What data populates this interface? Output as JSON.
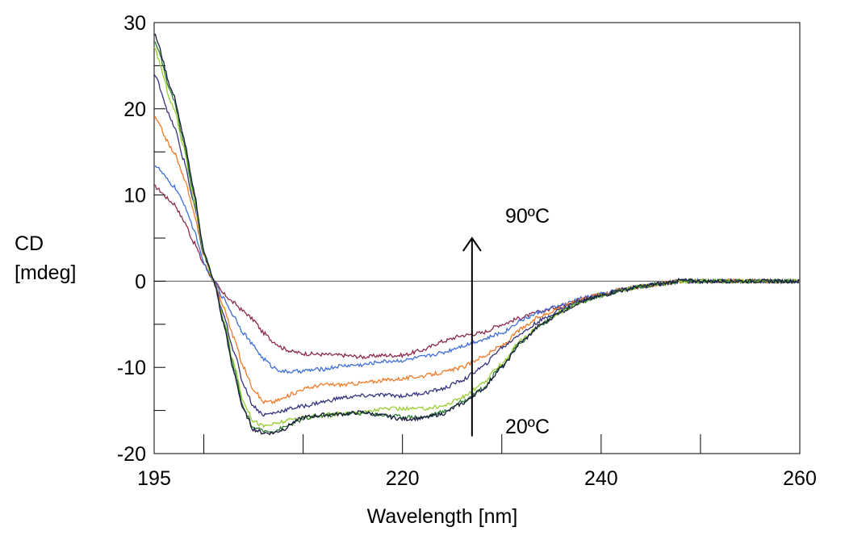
{
  "chart_data": {
    "type": "line",
    "title": "",
    "xlabel": "Wavelength [nm]",
    "ylabel_lines": [
      "CD",
      "[mdeg]"
    ],
    "xlim": [
      195,
      260
    ],
    "ylim": [
      -20,
      30
    ],
    "x_ticks": [
      195,
      220,
      240,
      260
    ],
    "x_minor_ticks": [
      200,
      210,
      230,
      250
    ],
    "y_ticks": [
      30,
      20,
      10,
      0,
      -10,
      -20
    ],
    "y_tick_labels": [
      "30",
      "20",
      "10",
      "0",
      "-10",
      "-20"
    ],
    "y_minor_ticks": [
      25,
      15,
      5,
      -5,
      -15
    ],
    "zero_line": true,
    "grid": false,
    "legend": "none",
    "annotations": {
      "top_label": "90ºC",
      "bottom_label": "20ºC",
      "arrow": {
        "x": 227,
        "from_y": -18,
        "to_y": 5,
        "direction": "up"
      }
    },
    "series": [
      {
        "color": "#8B2A52",
        "x": [
          195,
          197,
          198,
          199,
          200,
          201,
          202,
          203,
          204,
          205,
          206,
          207,
          208,
          209,
          210,
          212,
          214,
          216,
          218,
          220,
          222,
          224,
          226,
          228,
          230,
          232,
          234,
          236,
          238,
          240,
          242,
          244,
          246,
          248,
          250,
          252,
          254,
          256,
          258,
          260
        ],
        "y": [
          11,
          9,
          7,
          4.5,
          2,
          0,
          -1.5,
          -2.5,
          -3.5,
          -4.5,
          -6,
          -7,
          -7.8,
          -8.2,
          -8.4,
          -8.5,
          -8.6,
          -8.8,
          -8.6,
          -8.6,
          -8,
          -7,
          -6.3,
          -6,
          -5,
          -4.2,
          -3.5,
          -2.8,
          -2,
          -1.5,
          -1,
          -0.6,
          -0.3,
          0,
          0,
          0,
          0,
          0,
          0,
          0
        ]
      },
      {
        "color": "#3F6FD8",
        "x": [
          195,
          197,
          198,
          199,
          200,
          201,
          202,
          203,
          204,
          205,
          206,
          207,
          208,
          209,
          210,
          212,
          214,
          216,
          218,
          220,
          222,
          224,
          226,
          228,
          230,
          232,
          234,
          236,
          238,
          240,
          242,
          244,
          246,
          248,
          250,
          252,
          254,
          256,
          258,
          260
        ],
        "y": [
          13.5,
          11,
          9,
          6,
          2,
          0,
          -2,
          -4,
          -6,
          -7.5,
          -9,
          -10,
          -10.5,
          -10.5,
          -10.4,
          -10.2,
          -9.8,
          -9.7,
          -9.3,
          -9.2,
          -8.8,
          -8.3,
          -7.5,
          -6.8,
          -6,
          -4.5,
          -3.5,
          -2.8,
          -2,
          -1.5,
          -1,
          -0.6,
          -0.3,
          0,
          0,
          0,
          0,
          0,
          0,
          0
        ]
      },
      {
        "color": "#F07A28",
        "x": [
          195,
          197,
          198,
          199,
          200,
          201,
          202,
          203,
          204,
          205,
          206,
          207,
          208,
          209,
          210,
          212,
          214,
          216,
          218,
          220,
          222,
          224,
          226,
          228,
          230,
          232,
          234,
          236,
          238,
          240,
          242,
          244,
          246,
          248,
          250,
          252,
          254,
          256,
          258,
          260
        ],
        "y": [
          19,
          15,
          12,
          8,
          3,
          0,
          -3,
          -6.5,
          -10,
          -12.5,
          -14,
          -14,
          -13.6,
          -13,
          -12.5,
          -12,
          -12,
          -11.8,
          -11.5,
          -11.3,
          -11,
          -10.6,
          -10,
          -8.8,
          -7.5,
          -5.5,
          -4,
          -3,
          -2,
          -1.5,
          -1,
          -0.6,
          -0.3,
          0,
          0,
          0,
          0,
          0,
          0,
          0
        ]
      },
      {
        "color": "#34337E",
        "x": [
          195,
          197,
          198,
          199,
          200,
          201,
          202,
          203,
          204,
          205,
          206,
          207,
          208,
          209,
          210,
          212,
          214,
          216,
          218,
          220,
          222,
          224,
          226,
          228,
          230,
          232,
          234,
          236,
          238,
          240,
          242,
          244,
          246,
          248,
          250,
          252,
          254,
          256,
          258,
          260
        ],
        "y": [
          24,
          18,
          14,
          9,
          3,
          0,
          -4,
          -8,
          -12,
          -14.5,
          -15.5,
          -15.3,
          -15,
          -14.7,
          -14.5,
          -14,
          -13.5,
          -13.3,
          -13.2,
          -13.3,
          -13,
          -12.5,
          -11.5,
          -10,
          -7.7,
          -6,
          -4.5,
          -3.2,
          -2.2,
          -1.6,
          -1,
          -0.6,
          -0.3,
          0,
          0,
          0,
          0,
          0,
          0,
          0
        ]
      },
      {
        "color": "#9ACD32",
        "x": [
          195,
          197,
          198,
          199,
          200,
          201,
          202,
          203,
          204,
          205,
          206,
          207,
          208,
          209,
          210,
          212,
          214,
          216,
          218,
          220,
          222,
          224,
          226,
          228,
          230,
          232,
          234,
          236,
          238,
          240,
          242,
          244,
          246,
          248,
          250,
          252,
          254,
          256,
          258,
          260
        ],
        "y": [
          27,
          20,
          15.5,
          9.5,
          3,
          0,
          -4.5,
          -9.5,
          -14,
          -16.2,
          -16.8,
          -16.6,
          -16.3,
          -16,
          -15.8,
          -15.5,
          -15.3,
          -15.2,
          -14.8,
          -14.8,
          -14.8,
          -14.5,
          -13.5,
          -12,
          -9.5,
          -6.8,
          -5,
          -3.5,
          -2.4,
          -1.7,
          -1.1,
          -0.6,
          -0.3,
          0,
          0,
          0,
          0,
          0,
          0,
          0
        ]
      },
      {
        "color": "#2E7D32",
        "x": [
          195,
          197,
          198,
          199,
          200,
          201,
          202,
          203,
          204,
          205,
          206,
          207,
          208,
          209,
          210,
          212,
          214,
          216,
          218,
          220,
          222,
          224,
          226,
          228,
          230,
          232,
          234,
          236,
          238,
          240,
          242,
          244,
          246,
          248,
          250,
          252,
          254,
          256,
          258,
          260
        ],
        "y": [
          28,
          21,
          16,
          10,
          3.5,
          0,
          -4.8,
          -10,
          -14.8,
          -17,
          -17.4,
          -17.4,
          -17,
          -16.5,
          -16,
          -15.6,
          -15.4,
          -15.3,
          -15.5,
          -15.7,
          -15.8,
          -15.2,
          -14,
          -12.5,
          -9.8,
          -7,
          -5,
          -3.5,
          -2.4,
          -1.7,
          -1.1,
          -0.6,
          -0.3,
          0,
          0,
          0,
          0,
          0,
          0,
          0
        ]
      },
      {
        "color": "#1A1A40",
        "x": [
          195,
          197,
          198,
          199,
          200,
          201,
          202,
          203,
          204,
          205,
          206,
          207,
          208,
          209,
          210,
          212,
          214,
          216,
          218,
          220,
          222,
          224,
          226,
          228,
          230,
          232,
          234,
          236,
          238,
          240,
          242,
          244,
          246,
          248,
          250,
          252,
          254,
          256,
          258,
          260
        ],
        "y": [
          28.7,
          21.5,
          16.5,
          10.5,
          3.5,
          0,
          -5,
          -10.5,
          -15,
          -17.2,
          -17.6,
          -17.6,
          -17.2,
          -16.4,
          -15.8,
          -15.5,
          -15.4,
          -15.2,
          -15.6,
          -16,
          -15.9,
          -15.4,
          -14.2,
          -12.6,
          -10,
          -7,
          -5,
          -3.5,
          -2.4,
          -1.7,
          -1.1,
          -0.6,
          -0.3,
          0.1,
          0,
          0,
          0,
          0,
          0,
          0
        ]
      }
    ]
  }
}
